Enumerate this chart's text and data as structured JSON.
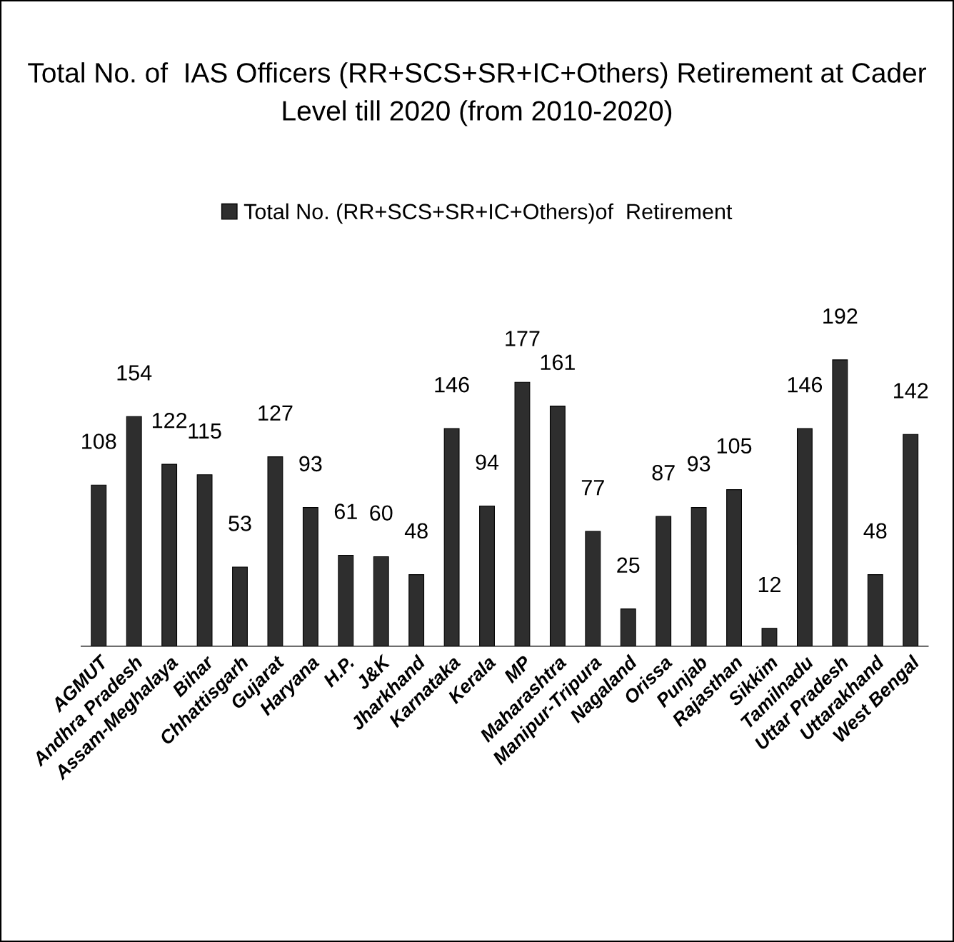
{
  "chart_data": {
    "type": "bar",
    "title": "Total No. of  IAS Officers (RR+SCS+SR+IC+Others) Retirement at Cader\nLevel till 2020 (from 2010-2020)",
    "categories": [
      "AGMUT",
      "Andhra Pradesh",
      "Assam-Meghalaya",
      "Bihar",
      "Chhattisgarh",
      "Gujarat",
      "Haryana",
      "H.P.",
      "J&K",
      "Jharkhand",
      "Karnataka",
      "Kerala",
      "MP",
      "Maharashtra",
      "Manipur-Tripura",
      "Nagaland",
      "Orissa",
      "Punjab",
      "Rajasthan",
      "Sikkim",
      "Tamilnadu",
      "Uttar Pradesh",
      "Uttarakhand",
      "West Bengal"
    ],
    "series": [
      {
        "name": "Total No. (RR+SCS+SR+IC+Others)of  Retirement",
        "color": "#2e2e2e",
        "values": [
          108,
          154,
          122,
          115,
          53,
          127,
          93,
          61,
          60,
          48,
          146,
          94,
          177,
          161,
          77,
          25,
          87,
          93,
          105,
          12,
          146,
          192,
          48,
          142
        ]
      }
    ],
    "data_labels": true,
    "legend": "top",
    "grid": false
  }
}
